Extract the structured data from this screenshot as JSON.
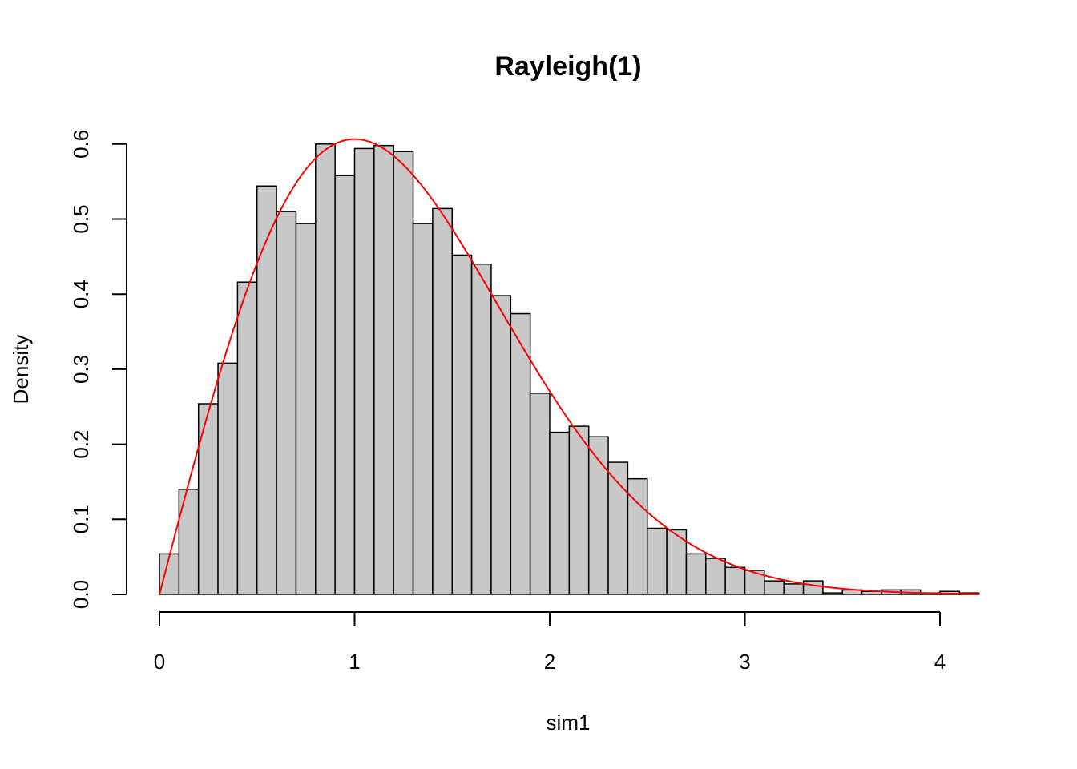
{
  "chart_data": {
    "type": "bar",
    "title": "Rayleigh(1)",
    "xlabel": "sim1",
    "ylabel": "Density",
    "bin_width": 0.1,
    "bin_start": 0.0,
    "values": [
      0.054,
      0.14,
      0.254,
      0.308,
      0.416,
      0.544,
      0.51,
      0.494,
      0.6,
      0.558,
      0.594,
      0.598,
      0.59,
      0.494,
      0.514,
      0.452,
      0.44,
      0.398,
      0.374,
      0.268,
      0.216,
      0.224,
      0.21,
      0.176,
      0.154,
      0.088,
      0.086,
      0.054,
      0.048,
      0.036,
      0.032,
      0.018,
      0.014,
      0.018,
      0.002,
      0.006,
      0.004,
      0.006,
      0.006,
      0.002,
      0.004,
      0.002
    ],
    "xticks": [
      0,
      1,
      2,
      3,
      4
    ],
    "yticks": [
      0.0,
      0.1,
      0.2,
      0.3,
      0.4,
      0.5,
      0.6
    ],
    "xlim": [
      0,
      4.2
    ],
    "ylim": [
      0,
      0.6
    ],
    "density_curve": {
      "distribution": "Rayleigh",
      "sigma": 1
    },
    "colors": {
      "bar_fill": "#c8c8c8",
      "bar_stroke": "#000000",
      "curve": "#ff0000"
    },
    "grid": false
  }
}
